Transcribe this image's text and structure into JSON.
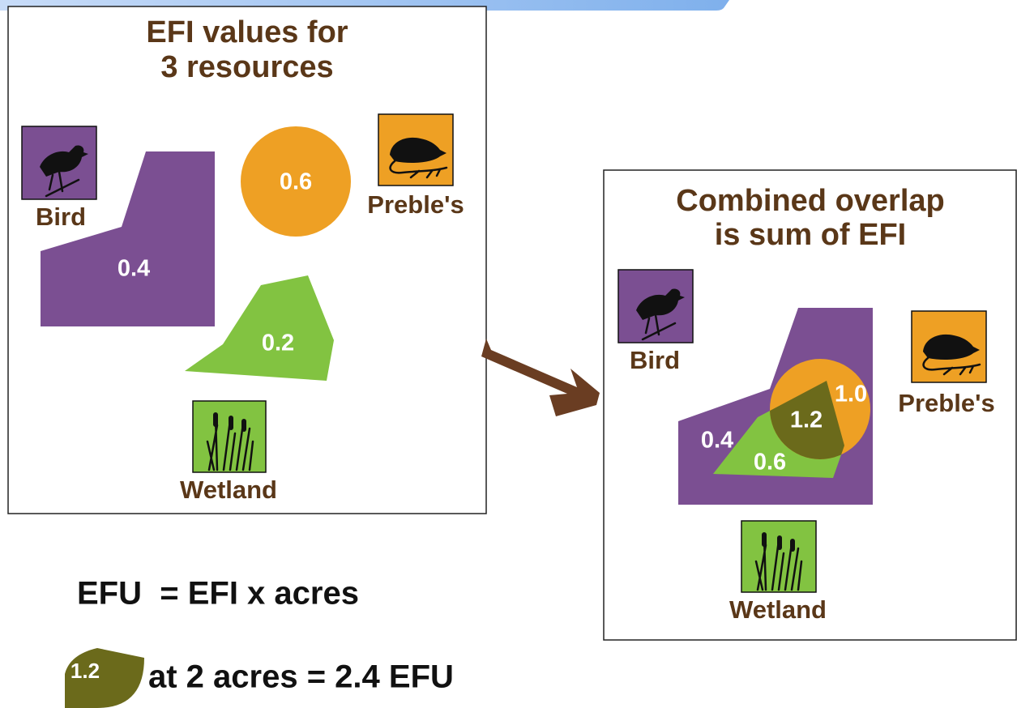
{
  "left_panel": {
    "title_lines": [
      "EFI values for",
      "3 resources"
    ],
    "resources": [
      {
        "label": "Bird",
        "efi": "0.4"
      },
      {
        "label": "Preble's",
        "efi": "0.6"
      },
      {
        "label": "Wetland",
        "efi": "0.2"
      }
    ]
  },
  "right_panel": {
    "title_lines": [
      "Combined overlap",
      "is sum of EFI"
    ],
    "icon_labels": [
      "Bird",
      "Preble's",
      "Wetland"
    ],
    "overlap_values": [
      "0.4",
      "0.6",
      "1.2",
      "1.0"
    ]
  },
  "formula": {
    "equation": "EFU  = EFI x acres",
    "example_badge": "1.2",
    "example_text": "at 2 acres = 2.4 EFU"
  }
}
